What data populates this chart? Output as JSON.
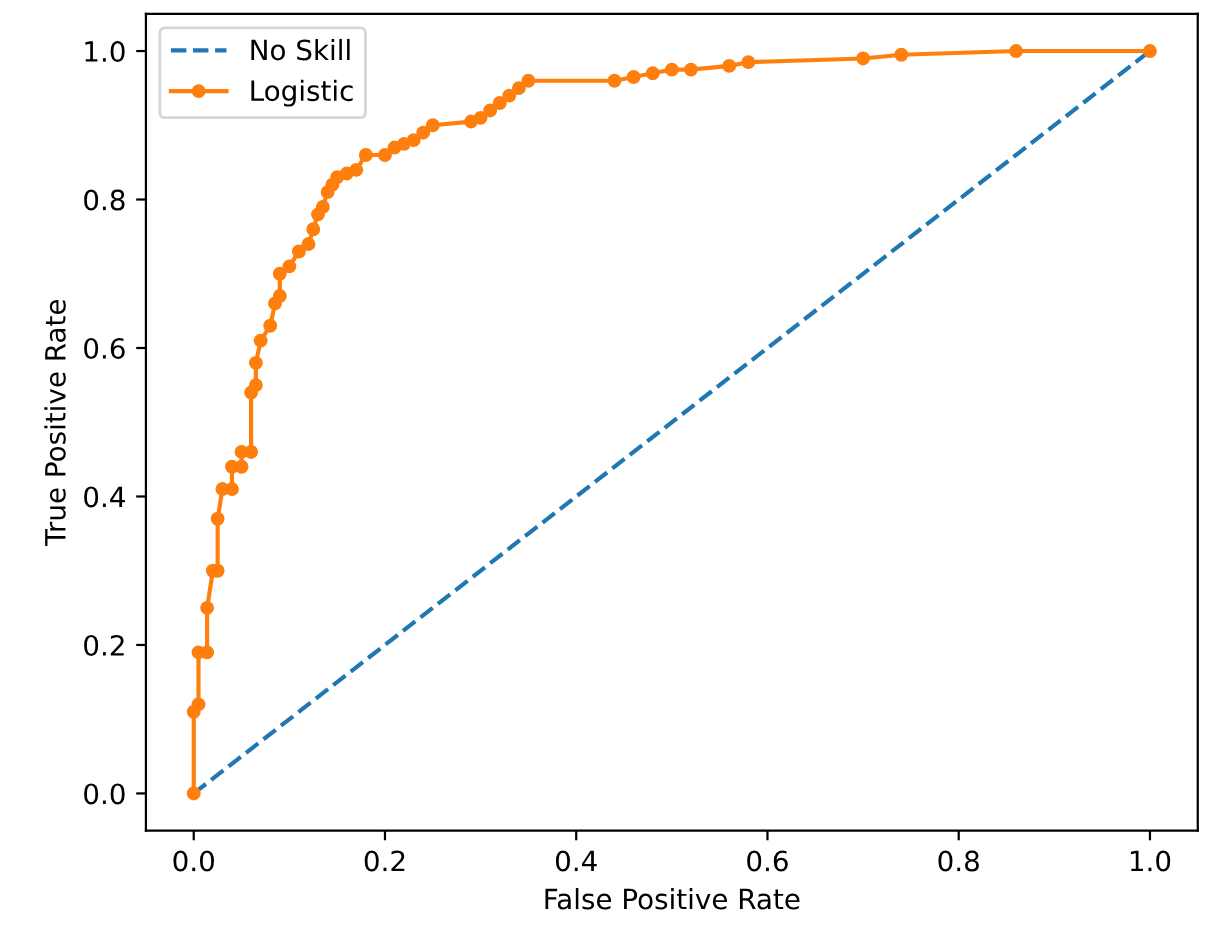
{
  "chart_data": {
    "type": "line",
    "xlabel": "False Positive Rate",
    "ylabel": "True Positive Rate",
    "xlim": [
      -0.05,
      1.05
    ],
    "ylim": [
      -0.05,
      1.05
    ],
    "xticks": [
      {
        "value": 0,
        "label": "0.0"
      },
      {
        "value": 0.2,
        "label": "0.2"
      },
      {
        "value": 0.4,
        "label": "0.4"
      },
      {
        "value": 0.6,
        "label": "0.6"
      },
      {
        "value": 0.8,
        "label": "0.8"
      },
      {
        "value": 1,
        "label": "1.0"
      }
    ],
    "yticks": [
      {
        "value": 0,
        "label": "0.0"
      },
      {
        "value": 0.2,
        "label": "0.2"
      },
      {
        "value": 0.4,
        "label": "0.4"
      },
      {
        "value": 0.6,
        "label": "0.6"
      },
      {
        "value": 0.8,
        "label": "0.8"
      },
      {
        "value": 1,
        "label": "1.0"
      }
    ],
    "grid": false,
    "legend": "top left",
    "series": [
      {
        "name": "No Skill",
        "color": "#1f77b4",
        "line_style": "dashed",
        "marker": "none",
        "x": [
          0,
          1
        ],
        "values": [
          0,
          1
        ]
      },
      {
        "name": "Logistic",
        "color": "#ff7f0e",
        "line_style": "solid",
        "marker": "circle",
        "x": [
          0,
          0,
          0.005,
          0.005,
          0.014,
          0.014,
          0.02,
          0.025,
          0.025,
          0.03,
          0.04,
          0.04,
          0.05,
          0.05,
          0.06,
          0.06,
          0.065,
          0.065,
          0.07,
          0.08,
          0.085,
          0.09,
          0.09,
          0.1,
          0.11,
          0.12,
          0.125,
          0.13,
          0.135,
          0.14,
          0.145,
          0.15,
          0.16,
          0.17,
          0.18,
          0.2,
          0.21,
          0.22,
          0.23,
          0.24,
          0.25,
          0.29,
          0.3,
          0.31,
          0.32,
          0.33,
          0.34,
          0.35,
          0.44,
          0.46,
          0.48,
          0.5,
          0.52,
          0.56,
          0.58,
          0.7,
          0.74,
          0.86,
          1
        ],
        "values": [
          0,
          0.11,
          0.12,
          0.19,
          0.19,
          0.25,
          0.3,
          0.3,
          0.37,
          0.41,
          0.41,
          0.44,
          0.44,
          0.46,
          0.46,
          0.54,
          0.55,
          0.58,
          0.61,
          0.63,
          0.66,
          0.67,
          0.7,
          0.71,
          0.73,
          0.74,
          0.76,
          0.78,
          0.79,
          0.81,
          0.82,
          0.83,
          0.835,
          0.84,
          0.86,
          0.86,
          0.87,
          0.875,
          0.88,
          0.89,
          0.9,
          0.905,
          0.91,
          0.92,
          0.93,
          0.94,
          0.95,
          0.96,
          0.96,
          0.965,
          0.97,
          0.975,
          0.975,
          0.98,
          0.985,
          0.99,
          0.995,
          1,
          1
        ]
      }
    ]
  }
}
